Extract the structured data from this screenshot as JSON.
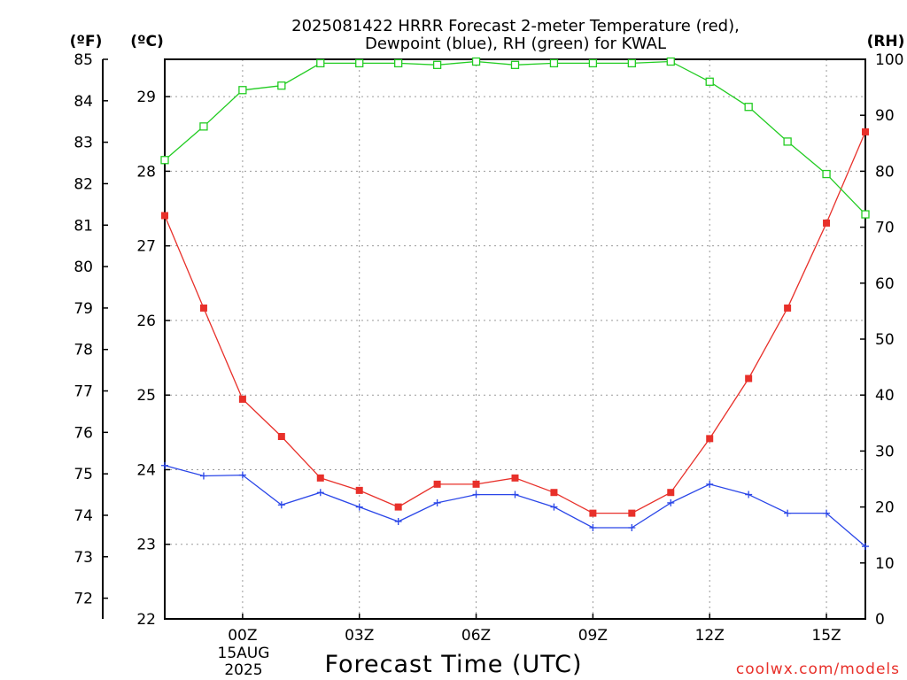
{
  "title_lines": [
    "2025081422 HRRR Forecast 2-meter Temperature (red),",
    "Dewpoint (blue), RH (green) for KWAL"
  ],
  "units": {
    "f": "(ºF)",
    "c": "(ºC)",
    "rh": "(RH)"
  },
  "xaxis_title": "Forecast Time (UTC)",
  "date_label": {
    "day": "15AUG",
    "year": "2025"
  },
  "credit": "coolwx.com/models",
  "colors": {
    "temperature": "#e8302a",
    "dewpoint": "#2a46e8",
    "rh": "#22cc22"
  },
  "chart_data": {
    "type": "line",
    "title": "2025081422 HRRR Forecast 2-meter Temperature (red), Dewpoint (blue), RH (green) for KWAL",
    "xlabel": "Forecast Time (UTC)",
    "x_hours": [
      -2,
      -1,
      0,
      1,
      2,
      3,
      4,
      5,
      6,
      7,
      8,
      9,
      10,
      11,
      12,
      13,
      14,
      15,
      16
    ],
    "x_ticks": [
      {
        "hour": 0,
        "label": "00Z"
      },
      {
        "hour": 3,
        "label": "03Z"
      },
      {
        "hour": 6,
        "label": "06Z"
      },
      {
        "hour": 9,
        "label": "09Z"
      },
      {
        "hour": 12,
        "label": "12Z"
      },
      {
        "hour": 15,
        "label": "15Z"
      }
    ],
    "x_range": [
      -2,
      16
    ],
    "left_axis_f": {
      "range": [
        71.5,
        85
      ],
      "ticks": [
        72,
        73,
        74,
        75,
        76,
        77,
        78,
        79,
        80,
        81,
        82,
        83,
        84,
        85
      ]
    },
    "left_axis_c": {
      "range": [
        22,
        29.5
      ],
      "ticks": [
        22,
        23,
        24,
        25,
        26,
        27,
        28,
        29
      ]
    },
    "right_axis_rh": {
      "range": [
        0,
        100
      ],
      "ticks": [
        0,
        10,
        20,
        30,
        40,
        50,
        60,
        70,
        80,
        90,
        100
      ]
    },
    "grid": true,
    "series": [
      {
        "name": "Temperature",
        "axis": "f",
        "marker": "square-filled",
        "color": "#e8302a",
        "values": [
          81.23,
          79.0,
          76.8,
          75.9,
          74.9,
          74.6,
          74.2,
          74.75,
          74.75,
          74.9,
          74.55,
          74.05,
          74.05,
          74.55,
          75.85,
          77.3,
          79.0,
          81.05,
          83.25
        ]
      },
      {
        "name": "Dewpoint",
        "axis": "f",
        "marker": "plus",
        "color": "#2a46e8",
        "values": [
          75.2,
          74.95,
          74.97,
          74.25,
          74.55,
          74.2,
          73.85,
          74.3,
          74.5,
          74.5,
          74.2,
          73.7,
          73.7,
          74.3,
          74.75,
          74.5,
          74.05,
          74.05,
          73.25
        ]
      },
      {
        "name": "RH",
        "axis": "rh",
        "marker": "square-open",
        "color": "#22cc22",
        "values": [
          82,
          88,
          94.5,
          95.3,
          99.3,
          99.3,
          99.3,
          99.0,
          99.6,
          99.0,
          99.3,
          99.3,
          99.3,
          99.6,
          96.0,
          91.5,
          85.3,
          79.5,
          72.3
        ]
      }
    ]
  }
}
